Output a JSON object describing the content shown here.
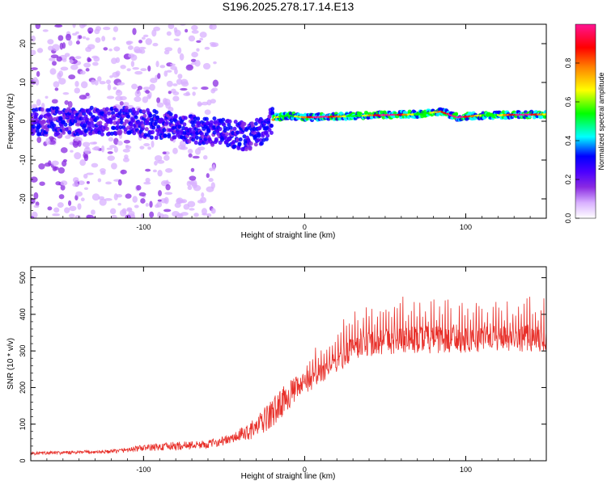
{
  "chart_data": [
    {
      "type": "heatmap",
      "title": "S196.2025.278.17.14.E13",
      "xlabel": "Height of straight line (km)",
      "ylabel": "Frequency (Hz)",
      "xlim": [
        -170,
        150
      ],
      "ylim": [
        -25,
        25
      ],
      "xticks": [
        -100,
        0,
        100
      ],
      "xtick_labels": [
        "-100",
        "0",
        "100"
      ],
      "yticks": [
        -20,
        -10,
        0,
        10,
        20
      ],
      "ytick_labels": [
        "-20",
        "-10",
        "0",
        "10",
        "20"
      ],
      "colorbar": {
        "label": "Normalized spectral amplitude",
        "range": [
          0,
          1
        ],
        "ticks": [
          0.0,
          0.2,
          0.4,
          0.6,
          0.8
        ],
        "tick_labels": [
          "0.0",
          "0.2",
          "0.4",
          "0.6",
          "0.8"
        ],
        "colors": [
          "#ffffff",
          "#d8b0ff",
          "#8a2be2",
          "#4b00ff",
          "#0000ff",
          "#00ffff",
          "#00ff00",
          "#ffff00",
          "#ff8000",
          "#ff0000",
          "#ff1493"
        ]
      },
      "ridge": {
        "description_points_x": [
          -170,
          -110,
          -90,
          -70,
          -50,
          -35,
          -25,
          -18,
          -10,
          0,
          20,
          40,
          70,
          85,
          95,
          110,
          150
        ],
        "description_points_y": [
          0,
          0,
          -1,
          -2,
          -3,
          -4,
          -2,
          1,
          1.5,
          1,
          1.2,
          1.5,
          1.8,
          2.5,
          1,
          1.5,
          1.8
        ]
      }
    },
    {
      "type": "line",
      "xlabel": "Height of straight line (km)",
      "ylabel": "SNR (10 * v/v)",
      "xlim": [
        -170,
        150
      ],
      "ylim": [
        0,
        530
      ],
      "xticks": [
        -100,
        0,
        100
      ],
      "xtick_labels": [
        "-100",
        "0",
        "100"
      ],
      "yticks": [
        0,
        100,
        200,
        300,
        400,
        500
      ],
      "ytick_labels": [
        "0",
        "100",
        "200",
        "300",
        "400",
        "500"
      ],
      "color": "#e8302a",
      "envelope_x": [
        -170,
        -120,
        -100,
        -80,
        -60,
        -45,
        -30,
        -20,
        -10,
        0,
        10,
        20,
        30,
        50,
        80,
        100,
        120,
        150
      ],
      "envelope_mean": [
        20,
        25,
        35,
        40,
        45,
        60,
        90,
        130,
        180,
        210,
        240,
        270,
        310,
        330,
        330,
        330,
        335,
        335
      ],
      "envelope_spread": [
        12,
        15,
        25,
        35,
        30,
        40,
        80,
        120,
        110,
        90,
        80,
        90,
        100,
        110,
        110,
        100,
        100,
        110
      ]
    }
  ]
}
